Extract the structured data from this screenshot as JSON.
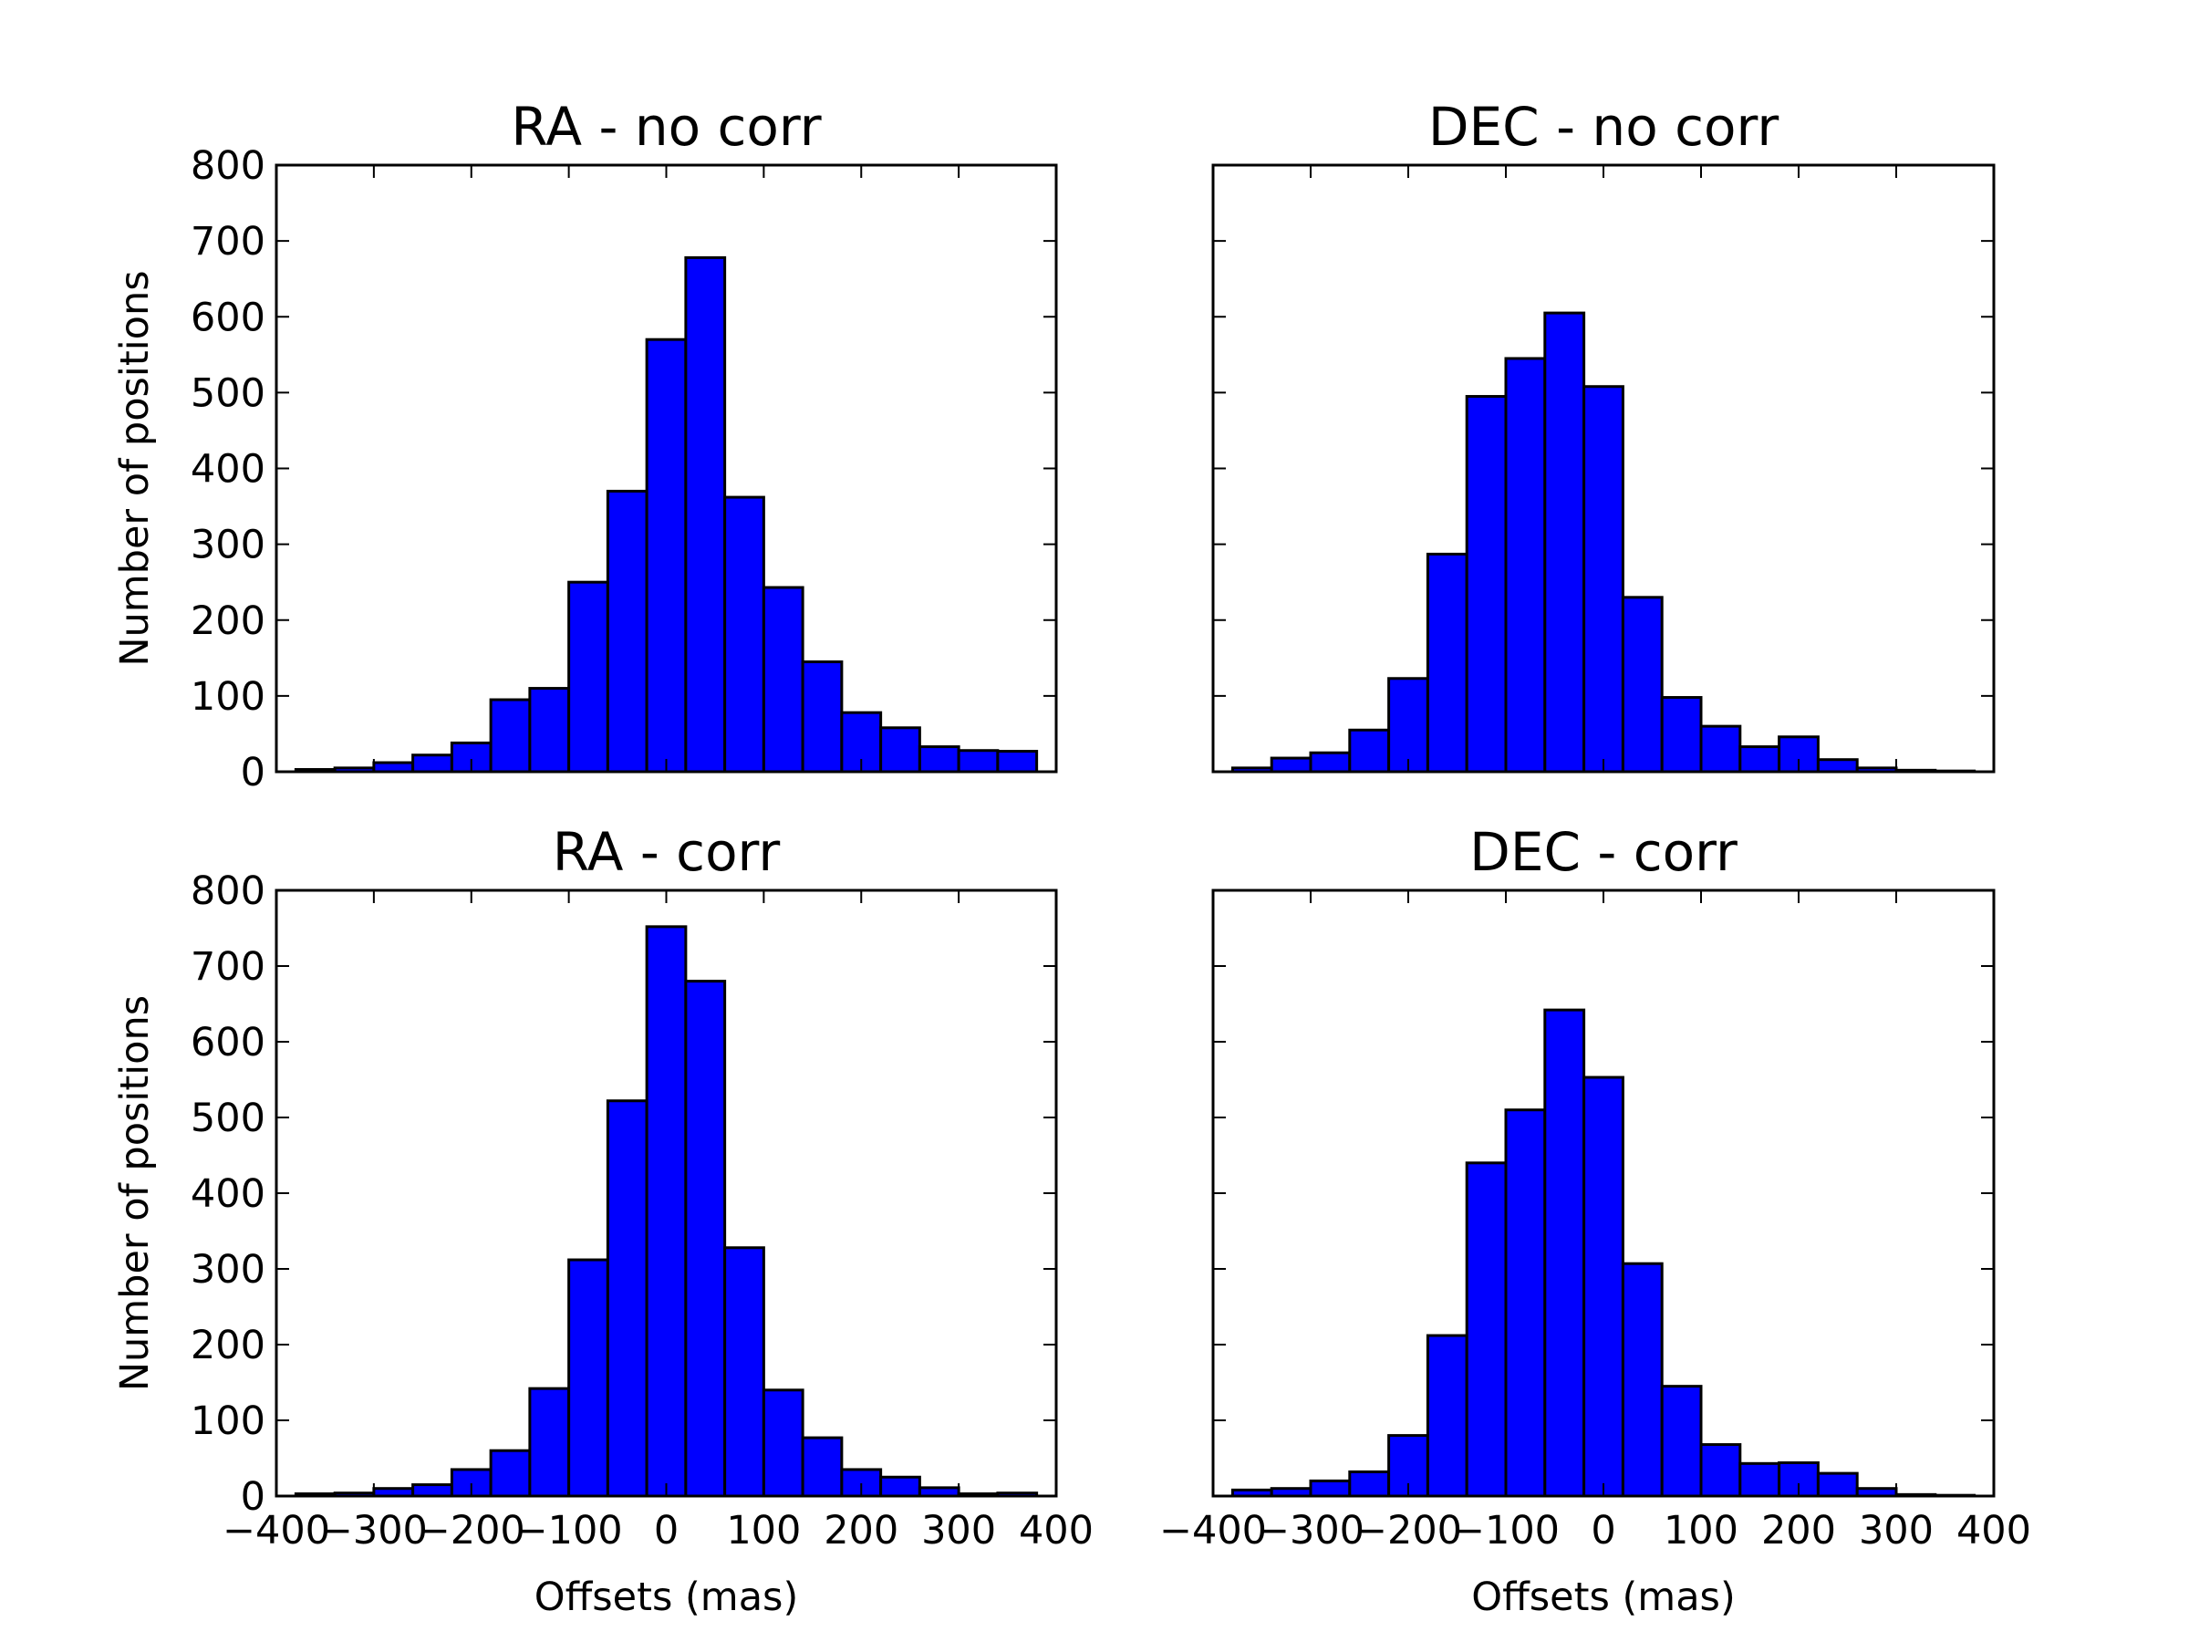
{
  "colors": {
    "bar_fill": "#0000ff",
    "bar_edge": "#000000"
  },
  "chart_data": [
    {
      "type": "bar",
      "title": "RA - no corr",
      "xlabel": "",
      "ylabel": "Number of positions",
      "xlim": [
        -400,
        400
      ],
      "ylim": [
        0,
        800
      ],
      "grid": false,
      "x_ticks": [],
      "y_ticks": [
        "0",
        "100",
        "200",
        "300",
        "400",
        "500",
        "600",
        "700",
        "800"
      ],
      "bin_edges": [
        -380,
        -340,
        -300,
        -260,
        -220,
        -180,
        -140,
        -100,
        -60,
        -20,
        20,
        60,
        100,
        140,
        180,
        220,
        260,
        300,
        340,
        380
      ],
      "values": [
        3,
        5,
        12,
        22,
        38,
        95,
        110,
        250,
        370,
        570,
        678,
        362,
        243,
        145,
        78,
        58,
        33,
        28,
        27
      ]
    },
    {
      "type": "bar",
      "title": "DEC - no corr",
      "xlabel": "",
      "ylabel": "",
      "xlim": [
        -400,
        400
      ],
      "ylim": [
        0,
        800
      ],
      "grid": false,
      "x_ticks": [],
      "y_ticks": [],
      "bin_edges": [
        -380,
        -340,
        -300,
        -260,
        -220,
        -180,
        -140,
        -100,
        -60,
        -20,
        20,
        60,
        100,
        140,
        180,
        220,
        260,
        300,
        340,
        380
      ],
      "values": [
        5,
        18,
        25,
        55,
        123,
        287,
        495,
        545,
        605,
        508,
        230,
        98,
        60,
        33,
        46,
        16,
        5,
        2,
        1
      ]
    },
    {
      "type": "bar",
      "title": "RA - corr",
      "xlabel": "Offsets (mas)",
      "ylabel": "Number of positions",
      "xlim": [
        -400,
        400
      ],
      "ylim": [
        0,
        800
      ],
      "grid": false,
      "x_ticks": [
        "−400",
        "−300",
        "−200",
        "−100",
        "0",
        "100",
        "200",
        "300",
        "400"
      ],
      "y_ticks": [
        "0",
        "100",
        "200",
        "300",
        "400",
        "500",
        "600",
        "700",
        "800"
      ],
      "bin_edges": [
        -380,
        -340,
        -300,
        -260,
        -220,
        -180,
        -140,
        -100,
        -60,
        -20,
        20,
        60,
        100,
        140,
        180,
        220,
        260,
        300,
        340,
        380
      ],
      "values": [
        3,
        4,
        10,
        15,
        35,
        60,
        142,
        312,
        522,
        752,
        680,
        328,
        140,
        77,
        35,
        25,
        11,
        3,
        4
      ]
    },
    {
      "type": "bar",
      "title": "DEC - corr",
      "xlabel": "Offsets (mas)",
      "ylabel": "",
      "xlim": [
        -400,
        400
      ],
      "ylim": [
        0,
        800
      ],
      "grid": false,
      "x_ticks": [
        "−400",
        "−300",
        "−200",
        "−100",
        "0",
        "100",
        "200",
        "300",
        "400"
      ],
      "y_ticks": [],
      "bin_edges": [
        -380,
        -340,
        -300,
        -260,
        -220,
        -180,
        -140,
        -100,
        -60,
        -20,
        20,
        60,
        100,
        140,
        180,
        220,
        260,
        300,
        340,
        380
      ],
      "values": [
        8,
        10,
        20,
        32,
        80,
        212,
        440,
        510,
        642,
        553,
        307,
        145,
        68,
        43,
        44,
        30,
        10,
        2,
        1
      ]
    }
  ]
}
